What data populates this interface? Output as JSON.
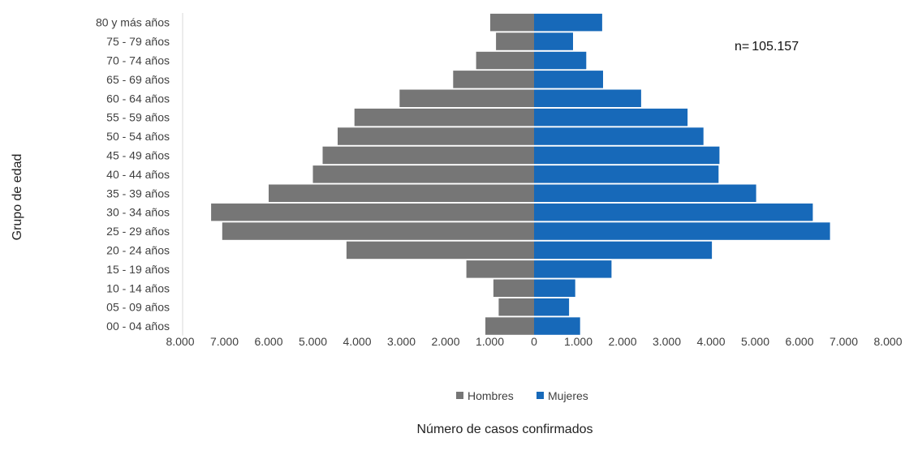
{
  "chart_data": {
    "type": "bar",
    "orientation": "horizontal-diverging",
    "title": "",
    "xlabel": "Número de casos confirmados",
    "ylabel": "Grupo de edad",
    "annotation": {
      "prefix": "n=",
      "value": "105.157"
    },
    "categories": [
      "00 - 04 años",
      "05 - 09 años",
      "10 - 14 años",
      "15 - 19 años",
      "20 - 24 años",
      "25 - 29 años",
      "30 - 34 años",
      "35 - 39 años",
      "40 - 44 años",
      "45 - 49 años",
      "50 - 54 años",
      "55 - 59 años",
      "60 - 64 años",
      "65 - 69 años",
      "70 - 74 años",
      "75 - 79 años",
      "80 y más años"
    ],
    "series": [
      {
        "name": "Hombres",
        "side": "left",
        "color": "#767676",
        "values": [
          1100,
          800,
          920,
          1530,
          4240,
          7050,
          7300,
          6000,
          5000,
          4780,
          4440,
          4060,
          3040,
          1830,
          1310,
          860,
          990
        ]
      },
      {
        "name": "Mujeres",
        "side": "right",
        "color": "#1769b9",
        "values": [
          1040,
          790,
          930,
          1750,
          4020,
          6690,
          6300,
          5020,
          4170,
          4190,
          3830,
          3470,
          2420,
          1560,
          1180,
          880,
          1540
        ]
      }
    ],
    "xlim": [
      -8000,
      8000
    ],
    "ticks": [
      -8000,
      -7000,
      -6000,
      -5000,
      -4000,
      -3000,
      -2000,
      -1000,
      0,
      1000,
      2000,
      3000,
      4000,
      5000,
      6000,
      7000,
      8000
    ],
    "tick_labels": [
      "8.000",
      "7.000",
      "6.000",
      "5.000",
      "4.000",
      "3.000",
      "2.000",
      "1.000",
      "0",
      "1.000",
      "2.000",
      "3.000",
      "4.000",
      "5.000",
      "6.000",
      "7.000",
      "8.000"
    ],
    "grid": false,
    "legend_position": "bottom"
  }
}
